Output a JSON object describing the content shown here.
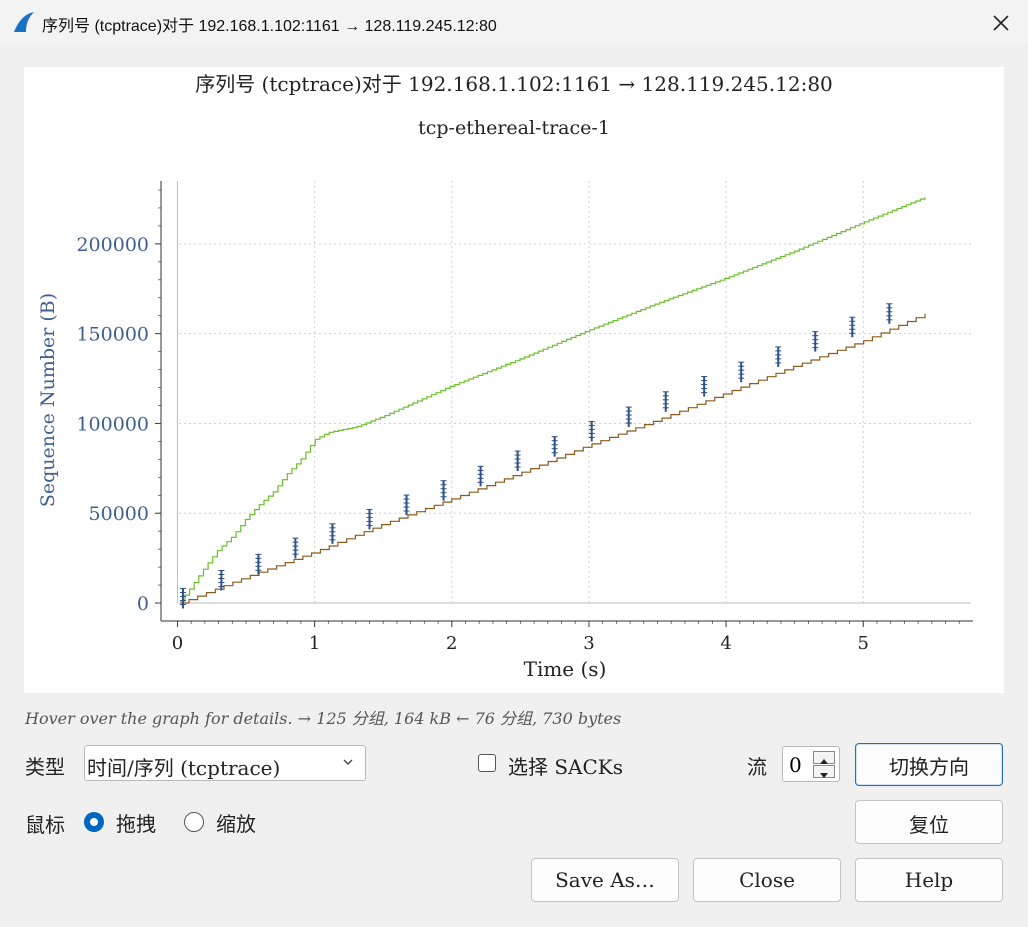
{
  "window": {
    "title": "序列号 (tcptrace)对于 192.168.1.102:1161 → 128.119.245.12:80"
  },
  "chart_data": {
    "type": "line",
    "title": "序列号 (tcptrace)对于 192.168.1.102:1161 → 128.119.245.12:80",
    "subtitle": "tcp-ethereal-trace-1",
    "xlabel": "Time (s)",
    "ylabel": "Sequence Number (B)",
    "xlim": [
      -0.12,
      5.8
    ],
    "ylim": [
      -10000,
      235000
    ],
    "x_ticks": [
      "0",
      "1",
      "2",
      "3",
      "4",
      "5"
    ],
    "y_ticks": [
      "0",
      "50000",
      "100000",
      "150000",
      "200000"
    ],
    "grid": true,
    "series": [
      {
        "role": "receive-window",
        "color": "#6bbf2e",
        "x": [
          0.02,
          0.1,
          0.2,
          0.3,
          0.4,
          0.5,
          0.6,
          0.7,
          0.8,
          0.9,
          1.0,
          1.1,
          1.3,
          1.5,
          2.0,
          2.5,
          3.0,
          3.5,
          4.0,
          4.5,
          5.0,
          5.45
        ],
        "values": [
          1000,
          9000,
          20000,
          30000,
          37000,
          47000,
          55000,
          62000,
          72000,
          80000,
          91000,
          95000,
          98000,
          104000,
          121000,
          136000,
          152000,
          167000,
          181000,
          196000,
          212000,
          226000
        ]
      },
      {
        "role": "ack",
        "color": "#8b5a1e",
        "x": [
          0.02,
          0.5,
          1.0,
          1.5,
          2.0,
          2.5,
          3.0,
          3.5,
          4.0,
          4.5,
          5.0,
          5.45
        ],
        "values": [
          0,
          14500,
          28500,
          44000,
          58000,
          72500,
          88000,
          102000,
          117000,
          132000,
          146000,
          161000
        ]
      },
      {
        "role": "segments",
        "color": "#2e4f8a",
        "x": [
          0.04,
          0.32,
          0.59,
          0.86,
          1.13,
          1.4,
          1.67,
          1.94,
          2.21,
          2.48,
          2.75,
          3.02,
          3.29,
          3.56,
          3.84,
          4.11,
          4.38,
          4.65,
          4.92,
          5.19
        ],
        "values": [
          2000,
          12000,
          21000,
          30000,
          38000,
          46000,
          54000,
          62000,
          70000,
          78500,
          86500,
          95000,
          103000,
          111500,
          120000,
          128000,
          136500,
          145000,
          153000,
          160500
        ]
      }
    ]
  },
  "status": {
    "hint": "Hover over the graph for details. → 125 分组, 164 kB ← 76 分组, 730 bytes"
  },
  "controls": {
    "type_label": "类型",
    "type_value": "时间/序列 (tcptrace)",
    "sacks_label": "选择 SACKs",
    "sacks_checked": false,
    "stream_label": "流",
    "stream_value": "0",
    "switch_direction_label": "切换方向",
    "mouse_label": "鼠标",
    "drag_label": "拖拽",
    "zoom_label": "缩放",
    "mouse_mode": "drag",
    "reset_label": "复位",
    "save_as_label": "Save As…",
    "close_label": "Close",
    "help_label": "Help"
  },
  "colors": {
    "accent": "#0067c0",
    "axis_text": "#3c5f8f"
  }
}
